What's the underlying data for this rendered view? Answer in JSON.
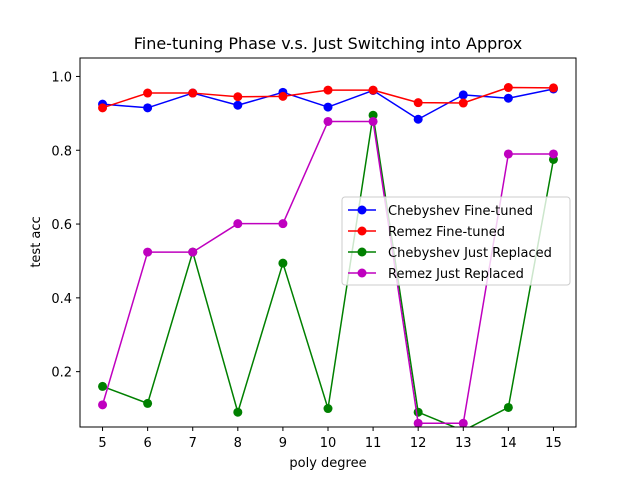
{
  "chart_data": {
    "type": "line",
    "title": "Fine-tuning Phase v.s. Just Switching into Approx",
    "xlabel": "poly degree",
    "ylabel": "test acc",
    "x": [
      5,
      6,
      7,
      8,
      9,
      10,
      11,
      12,
      13,
      14,
      15
    ],
    "xlim": [
      4.5,
      15.5
    ],
    "ylim": [
      0.05,
      1.05
    ],
    "yticks": [
      0.2,
      0.4,
      0.6,
      0.8,
      1.0
    ],
    "ytick_labels": [
      "0.2",
      "0.4",
      "0.6",
      "0.8",
      "1.0"
    ],
    "grid": false,
    "legend_position": "center-right",
    "series": [
      {
        "name": "Chebyshev Fine-tuned",
        "color": "#0000ff",
        "values": [
          0.925,
          0.915,
          0.955,
          0.922,
          0.957,
          0.917,
          0.962,
          0.884,
          0.95,
          0.941,
          0.966
        ]
      },
      {
        "name": "Remez Fine-tuned",
        "color": "#ff0000",
        "values": [
          0.915,
          0.955,
          0.955,
          0.945,
          0.946,
          0.963,
          0.963,
          0.929,
          0.928,
          0.97,
          0.969
        ]
      },
      {
        "name": "Chebyshev Just Replaced",
        "color": "#008000",
        "values": [
          0.16,
          0.114,
          0.524,
          0.09,
          0.494,
          0.1,
          0.895,
          0.09,
          0.04,
          0.103,
          0.775
        ]
      },
      {
        "name": "Remez Just Replaced",
        "color": "#bf00bf",
        "values": [
          0.11,
          0.524,
          0.524,
          0.601,
          0.601,
          0.878,
          0.878,
          0.06,
          0.06,
          0.79,
          0.79
        ]
      }
    ]
  }
}
